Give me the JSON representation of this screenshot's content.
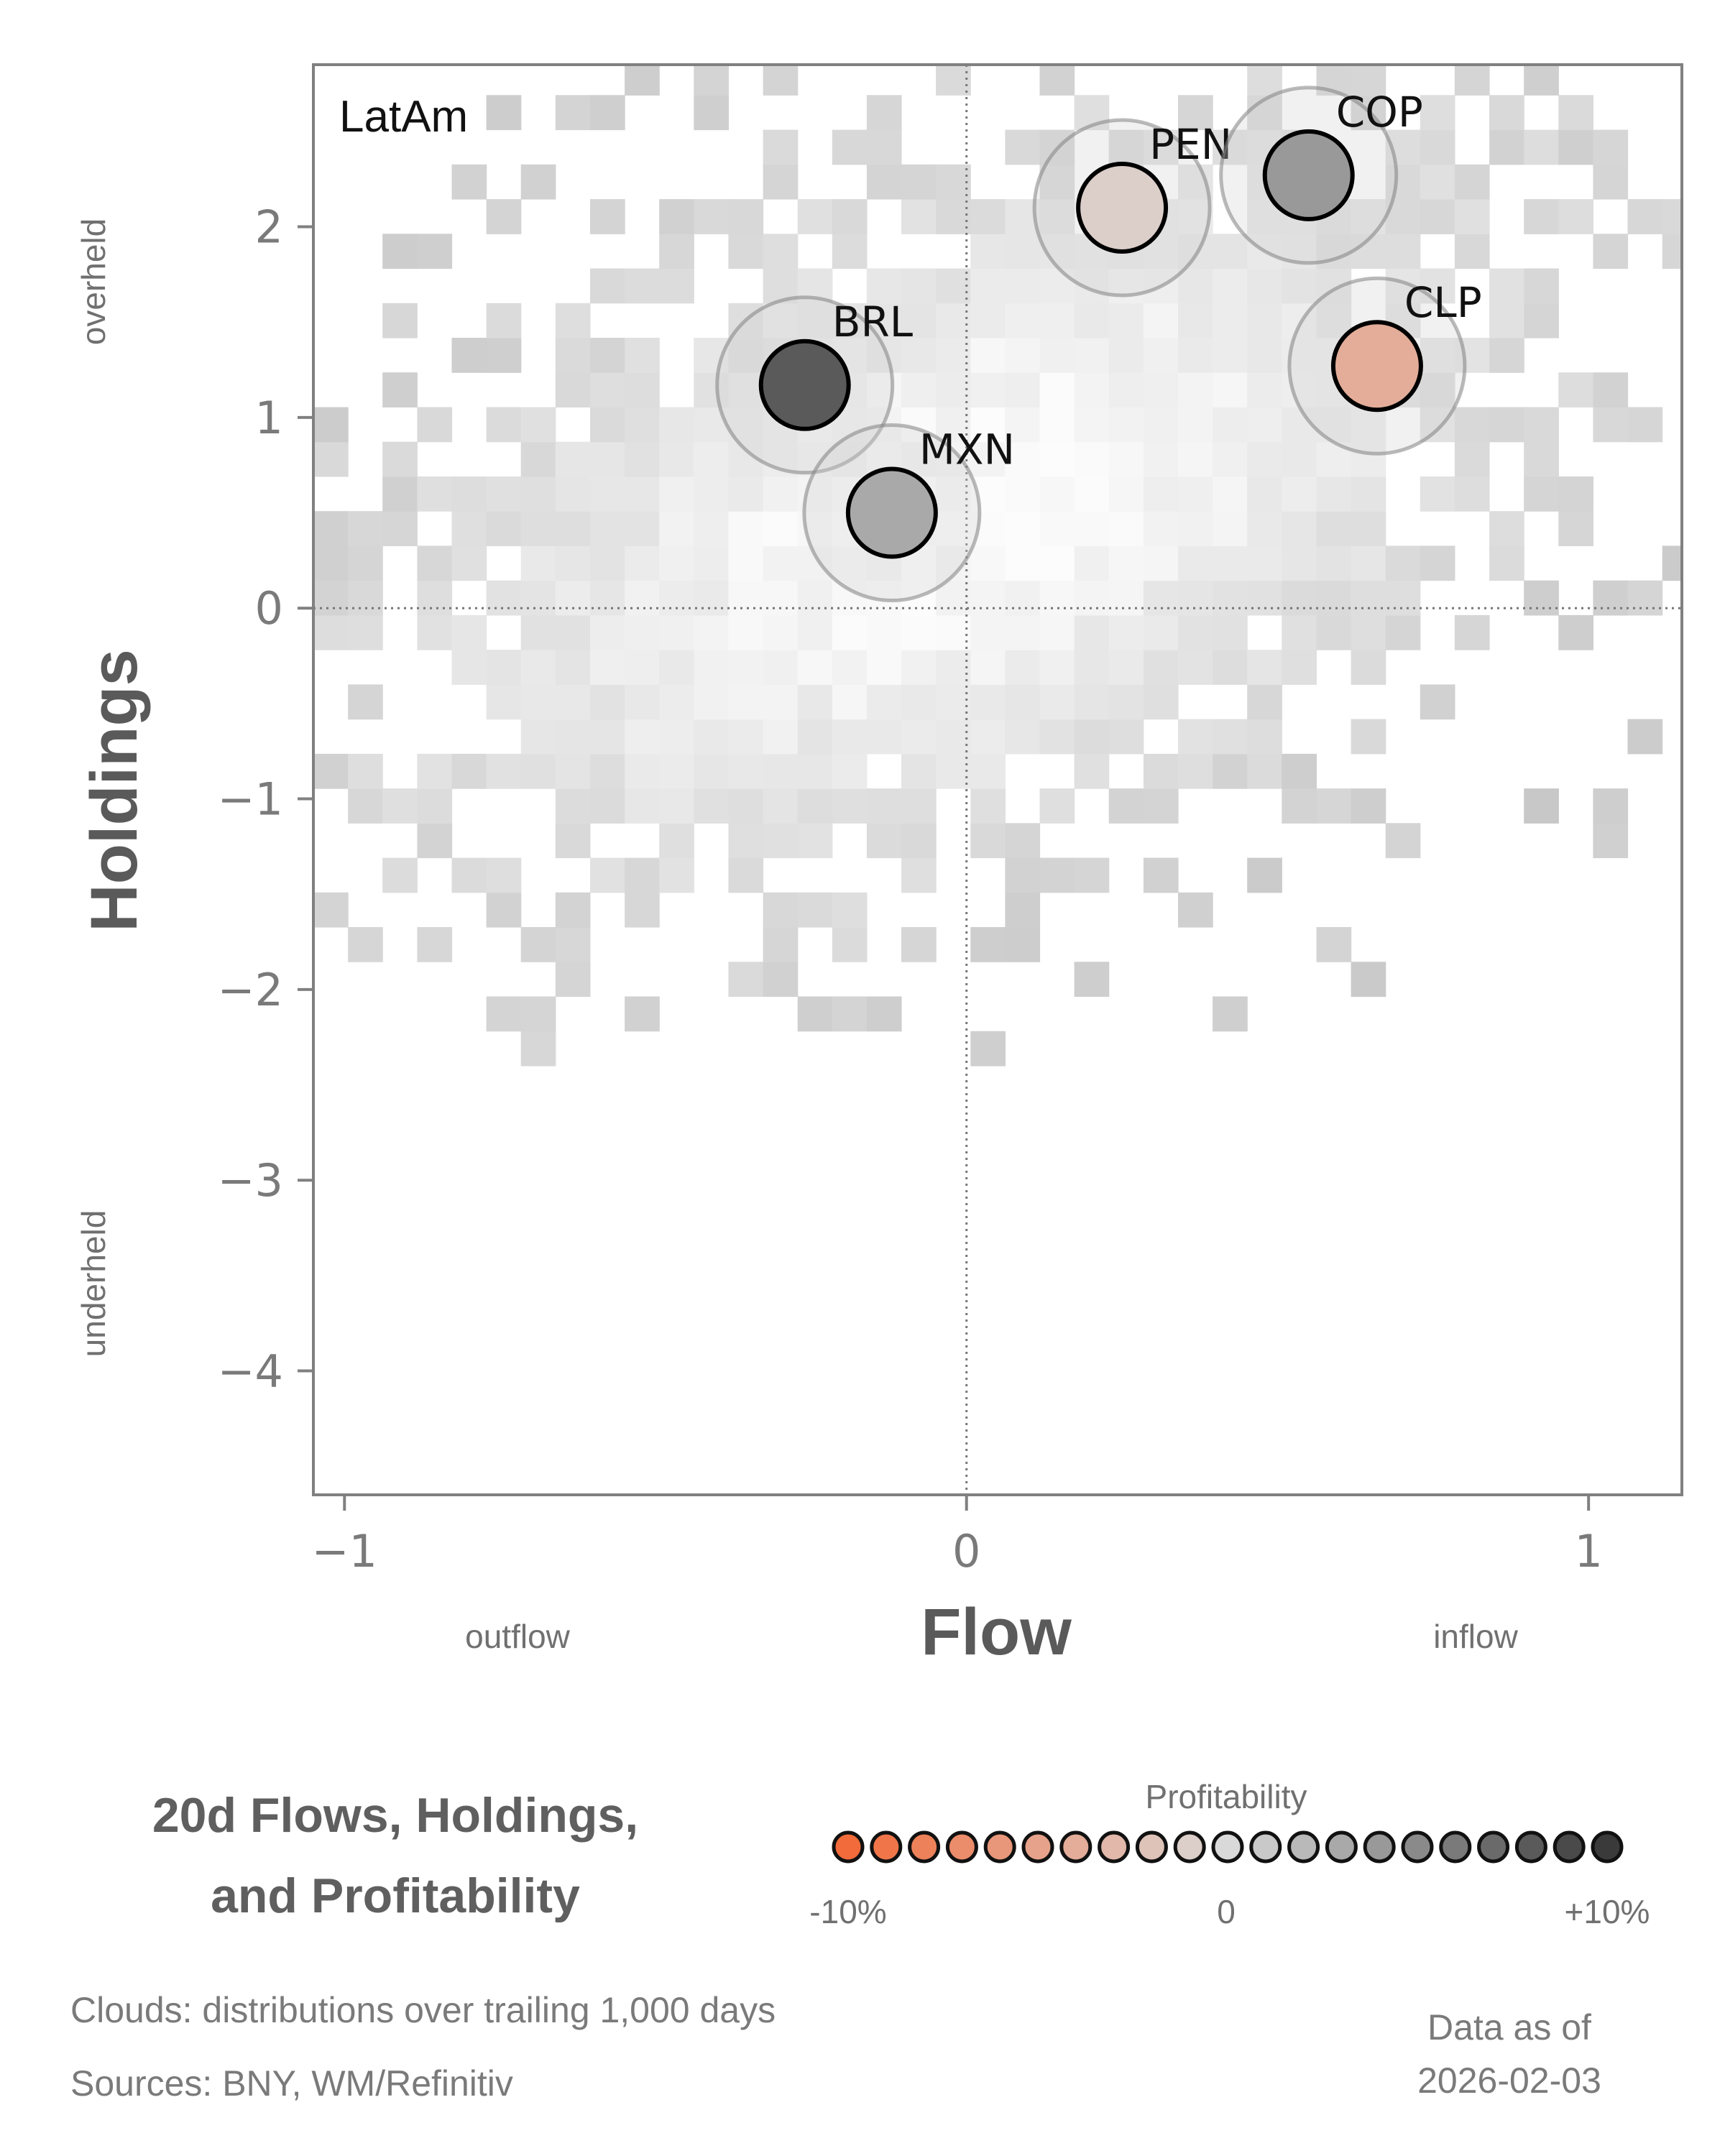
{
  "chart_data": {
    "type": "scatter",
    "panel_label": "LatAm",
    "xlabel": "Flow",
    "ylabel": "Holdings",
    "xlim": [
      -1.05,
      1.15
    ],
    "ylim": [
      -4.65,
      2.85
    ],
    "xticks": [
      -1,
      0,
      1
    ],
    "xtick_labels": [
      "−1",
      "0",
      "1"
    ],
    "yticks": [
      2,
      1,
      0,
      -1,
      -2,
      -3,
      -4
    ],
    "ytick_labels": [
      "2",
      "1",
      "0",
      "−1",
      "−2",
      "−3",
      "−4"
    ],
    "x_side_labels": {
      "left": "outflow",
      "right": "inflow"
    },
    "y_side_labels": {
      "top": "overheld",
      "bottom": "underheld"
    },
    "reference_lines": {
      "x": 0,
      "y": 0
    },
    "points": [
      {
        "label": "BRL",
        "x": -0.26,
        "y": 1.17,
        "profitability_pct": 8
      },
      {
        "label": "MXN",
        "x": -0.12,
        "y": 0.5,
        "profitability_pct": 3
      },
      {
        "label": "PEN",
        "x": 0.25,
        "y": 2.1,
        "profitability_pct": -1
      },
      {
        "label": "COP",
        "x": 0.55,
        "y": 2.27,
        "profitability_pct": 4
      },
      {
        "label": "CLP",
        "x": 0.66,
        "y": 1.27,
        "profitability_pct": -4
      }
    ],
    "cloud": {
      "description_key": "distributions over trailing 1,000 days",
      "x_bin_width": 0.0556,
      "y_bin_width": 0.1818,
      "x_start": -1.05,
      "y_start": -2.4,
      "center": [
        0.0,
        0.5
      ],
      "spread": [
        0.6,
        1.3
      ],
      "correlation": 0.45
    }
  },
  "legend": {
    "title_line1": "20d Flows, Holdings,",
    "title_line2": "and Profitability",
    "scale_title": "Profitability",
    "scale_min_label": "-10%",
    "scale_mid_label": "0",
    "scale_max_label": "+10%",
    "scale_min": -10,
    "scale_max": 10,
    "scale_steps": 21,
    "colors": {
      "negative": "#f26b3a",
      "neutral": "#d9d9d9",
      "positive": "#3a3a3a"
    }
  },
  "footer": {
    "clouds_note": "Clouds:  distributions over trailing 1,000 days",
    "sources_note": "Sources:  BNY, WM/Refinitiv",
    "data_as_of_label": "Data as of",
    "data_as_of_date": "2026-02-03"
  }
}
